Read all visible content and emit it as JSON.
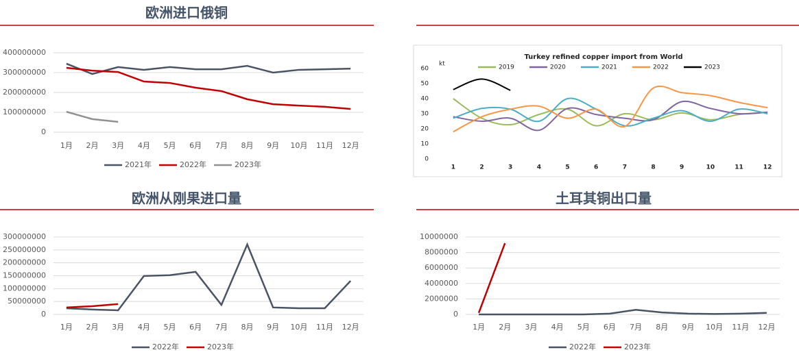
{
  "chart_data": [
    {
      "type": "line",
      "title": "欧洲进口俄铜",
      "categories": [
        "1月",
        "2月",
        "3月",
        "4月",
        "5月",
        "6月",
        "7月",
        "8月",
        "9月",
        "10月",
        "11月",
        "12月"
      ],
      "series": [
        {
          "name": "2021年",
          "color": "#4a5363",
          "values": [
            345000000,
            293000000,
            328000000,
            314000000,
            328000000,
            317000000,
            317000000,
            334000000,
            300000000,
            314000000,
            317000000,
            320000000
          ]
        },
        {
          "name": "2022年",
          "color": "#c00000",
          "values": [
            324000000,
            310000000,
            303000000,
            255000000,
            248000000,
            224000000,
            207000000,
            166000000,
            141000000,
            134000000,
            128000000,
            117000000
          ]
        },
        {
          "name": "2023年",
          "color": "#919191",
          "values": [
            103000000,
            66000000,
            52000000,
            null,
            null,
            null,
            null,
            null,
            null,
            null,
            null,
            null
          ]
        }
      ],
      "ylim": [
        0,
        400000000
      ],
      "yticks": [
        0,
        100000000,
        200000000,
        300000000,
        400000000
      ],
      "grid": true,
      "legend": "bottom"
    },
    {
      "type": "line",
      "title": "Turkey refined copper import from World",
      "y_label": "kt",
      "smooth": true,
      "categories": [
        "1",
        "2",
        "3",
        "4",
        "5",
        "6",
        "7",
        "8",
        "9",
        "10",
        "11",
        "12"
      ],
      "series": [
        {
          "name": "2019",
          "color": "#9bbb59",
          "values": [
            40,
            27,
            22.7,
            29.5,
            33,
            22,
            30,
            26,
            30.5,
            26,
            29.5,
            31
          ]
        },
        {
          "name": "2020",
          "color": "#8064a2",
          "values": [
            28,
            25,
            27,
            19,
            33.5,
            29.5,
            27,
            26,
            38,
            33.5,
            30,
            31
          ]
        },
        {
          "name": "2021",
          "color": "#4bacc6",
          "values": [
            27,
            33.5,
            33,
            25,
            40,
            33,
            22,
            27,
            32,
            25,
            33,
            30
          ]
        },
        {
          "name": "2022",
          "color": "#f79646",
          "values": [
            18,
            28,
            33,
            35,
            27,
            33,
            21.5,
            47,
            44,
            42,
            37.5,
            34
          ]
        },
        {
          "name": "2023",
          "color": "#000000",
          "values": [
            46,
            53,
            45.5,
            null,
            null,
            null,
            null,
            null,
            null,
            null,
            null,
            null
          ]
        }
      ],
      "ylim": [
        0,
        60
      ],
      "yticks": [
        0,
        10,
        20,
        30,
        40,
        50,
        60
      ],
      "grid": false,
      "legend": "top"
    },
    {
      "type": "line",
      "title": "欧洲从刚果进口量",
      "categories": [
        "1月",
        "2月",
        "3月",
        "4月",
        "5月",
        "6月",
        "7月",
        "8月",
        "9月",
        "10月",
        "11月",
        "12月"
      ],
      "series": [
        {
          "name": "2022年",
          "color": "#4a5363",
          "values": [
            24000000,
            19000000,
            16000000,
            149000000,
            152000000,
            165000000,
            37000000,
            271000000,
            27000000,
            24000000,
            24000000,
            130000000
          ]
        },
        {
          "name": "2023年",
          "color": "#c00000",
          "values": [
            27000000,
            32000000,
            40000000,
            null,
            null,
            null,
            null,
            null,
            null,
            null,
            null,
            null
          ]
        }
      ],
      "ylim": [
        0,
        300000000
      ],
      "yticks": [
        0,
        50000000,
        100000000,
        150000000,
        200000000,
        250000000,
        300000000
      ],
      "grid": true,
      "legend": "bottom"
    },
    {
      "type": "line",
      "title": "土耳其铜出口量",
      "categories": [
        "1月",
        "2月",
        "3月",
        "4月",
        "5月",
        "6月",
        "7月",
        "8月",
        "9月",
        "10月",
        "11月",
        "12月"
      ],
      "series": [
        {
          "name": "2022年",
          "color": "#4a5363",
          "values": [
            0,
            0,
            0,
            0,
            0,
            100000,
            600000,
            250000,
            100000,
            50000,
            100000,
            200000
          ]
        },
        {
          "name": "2023年",
          "color": "#c00000",
          "values": [
            200000,
            9200000,
            null,
            null,
            null,
            null,
            null,
            null,
            null,
            null,
            null,
            null
          ]
        }
      ],
      "ylim": [
        0,
        10000000
      ],
      "yticks": [
        0,
        2000000,
        4000000,
        6000000,
        8000000,
        10000000
      ],
      "grid": true,
      "legend": "bottom"
    }
  ]
}
